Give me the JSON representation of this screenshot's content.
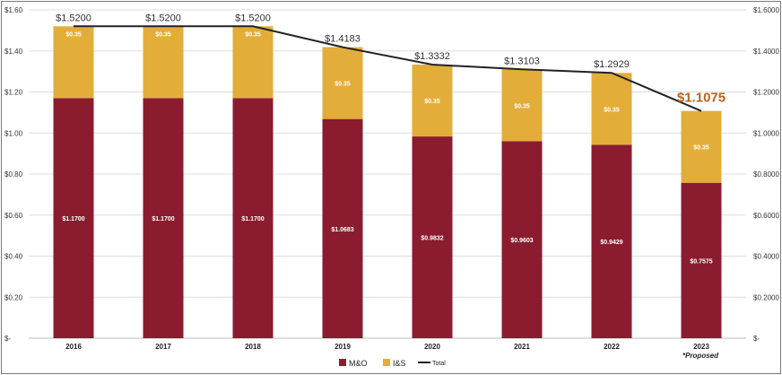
{
  "chart_data": {
    "type": "bar",
    "stacked": true,
    "categories": [
      "2016",
      "2017",
      "2018",
      "2019",
      "2020",
      "2021",
      "2022",
      "2023"
    ],
    "series": [
      {
        "name": "M&O",
        "color": "#8b1c2f",
        "values": [
          1.17,
          1.17,
          1.17,
          1.0683,
          0.9832,
          0.9603,
          0.9429,
          0.7575
        ],
        "labels": [
          "$1.1700",
          "$1.1700",
          "$1.1700",
          "$1.0683",
          "$0.9832",
          "$0.9603",
          "$0.9429",
          "$0.7575"
        ]
      },
      {
        "name": "I&S",
        "color": "#e3ad3a",
        "values": [
          0.35,
          0.35,
          0.35,
          0.35,
          0.35,
          0.35,
          0.35,
          0.35
        ],
        "labels": [
          "$0.35",
          "$0.35",
          "$0.35",
          "$0.35",
          "$0.35",
          "$0.35",
          "$0.35",
          "$0.35"
        ]
      },
      {
        "name": "Total",
        "type": "line",
        "color": "#222222",
        "values": [
          1.52,
          1.52,
          1.52,
          1.4183,
          1.3332,
          1.3103,
          1.2929,
          1.1075
        ],
        "labels": [
          "$1.5200",
          "$1.5200",
          "$1.5200",
          "$1.4183",
          "$1.3332",
          "$1.3103",
          "$1.2929",
          "$1.1075"
        ]
      }
    ],
    "highlight_index": 7,
    "highlight_color": "#b5651d",
    "ylim": [
      0,
      1.6
    ],
    "y_ticks_left": [
      "$-",
      "$0.20",
      "$0.40",
      "$0.60",
      "$0.80",
      "$1.00",
      "$1.20",
      "$1.40",
      "$1.60"
    ],
    "y_ticks_right": [
      "$-",
      "$0.2000",
      "$0.4000",
      "$0.6000",
      "$0.8000",
      "$1.0000",
      "$1.2000",
      "$1.4000",
      "$1.6000"
    ],
    "grid": true,
    "legend_position": "bottom",
    "annotation": "*Proposed",
    "title": "",
    "xlabel": "",
    "ylabel": ""
  }
}
